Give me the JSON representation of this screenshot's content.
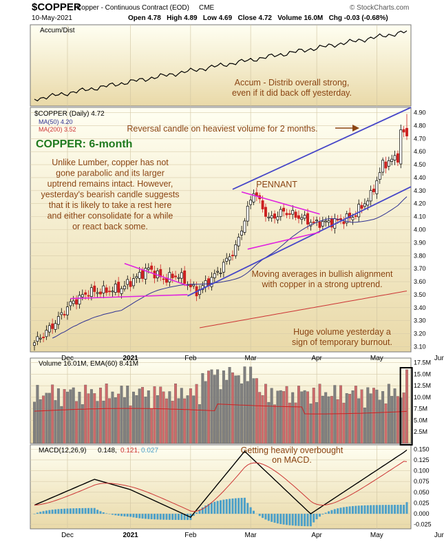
{
  "header": {
    "symbol": "$COPPER",
    "description": "Copper - Continuous Contract (EOD)",
    "exchange": "CME",
    "date": "10-May-2021",
    "site": "© StockCharts.com",
    "ohlc": "Open 4.78   High 4.89   Low 4.69   Close 4.72   Volume 16.0M   Chg -0.03 (-0.68%)"
  },
  "colors": {
    "panel_top": "#fffff2",
    "panel_bottom": "#e9d9a8",
    "up_candle": "#000000",
    "down_candle": "#cc2020",
    "ma50": "#2e3192",
    "ma200": "#cc3333",
    "trendline": "#4646c8",
    "pennant": "#e020e0",
    "annotation": "#8b4513",
    "title_green": "#1f7a1f",
    "macd_hist": "#4da0c8",
    "volume_up": "#808080",
    "volume_down": "#cd6b6b"
  },
  "chart_data": {
    "type": "candlestick",
    "x_labels": [
      "Dec",
      "2021",
      "Feb",
      "Mar",
      "Apr",
      "May",
      "Jun"
    ],
    "accum_panel": {
      "label": "Accum/Dist",
      "annotation": [
        "Accum - Distrib overall strong,",
        "even if it did back off yesterday."
      ]
    },
    "price_panel": {
      "legend": [
        "$COPPER (Daily) 4.72",
        "MA(50) 4.20",
        "MA(200) 3.52"
      ],
      "y_ticks": [
        "3.10",
        "3.20",
        "3.30",
        "3.40",
        "3.50",
        "3.60",
        "3.70",
        "3.80",
        "3.90",
        "4.00",
        "4.10",
        "4.20",
        "4.30",
        "4.40",
        "4.50",
        "4.60",
        "4.70",
        "4.80",
        "4.90"
      ],
      "ylim": [
        3.06,
        4.94
      ],
      "title": "COPPER: 6-month",
      "commentary": [
        "Unlike Lumber, copper has not",
        "gone parabolic and its larger",
        "uptrend remains intact. However,",
        "yesterday's bearish candle suggests",
        "that it is likely to take a rest here",
        "and either consolidate for a while",
        "or react back some."
      ],
      "annotations": {
        "reversal": "Reversal candle on heaviest volume for 2 months.",
        "pennant": "PENNANT",
        "moving_averages": [
          "Moving averages in bullish alignment",
          "with copper in a strong uptrend."
        ],
        "volume": [
          "Huge volume yesterday a",
          "sign of temporary burnout."
        ]
      },
      "close_series": [
        {
          "x": "2020-11-12",
          "close": 3.13
        },
        {
          "x": "2020-11-20",
          "close": 3.26
        },
        {
          "x": "2020-11-30",
          "close": 3.43
        },
        {
          "x": "2020-12-08",
          "close": 3.52
        },
        {
          "x": "2020-12-16",
          "close": 3.53
        },
        {
          "x": "2020-12-24",
          "close": 3.55
        },
        {
          "x": "2021-01-06",
          "close": 3.7
        },
        {
          "x": "2021-01-13",
          "close": 3.62
        },
        {
          "x": "2021-01-21",
          "close": 3.65
        },
        {
          "x": "2021-01-29",
          "close": 3.52
        },
        {
          "x": "2021-02-08",
          "close": 3.67
        },
        {
          "x": "2021-02-16",
          "close": 3.86
        },
        {
          "x": "2021-02-25",
          "close": 4.3
        },
        {
          "x": "2021-03-04",
          "close": 4.08
        },
        {
          "x": "2021-03-12",
          "close": 4.14
        },
        {
          "x": "2021-03-19",
          "close": 4.1
        },
        {
          "x": "2021-03-26",
          "close": 4.05
        },
        {
          "x": "2021-04-06",
          "close": 4.06
        },
        {
          "x": "2021-04-14",
          "close": 4.1
        },
        {
          "x": "2021-04-22",
          "close": 4.26
        },
        {
          "x": "2021-04-29",
          "close": 4.5
        },
        {
          "x": "2021-05-05",
          "close": 4.56
        },
        {
          "x": "2021-05-07",
          "close": 4.75
        },
        {
          "x": "2021-05-10",
          "close": 4.72
        }
      ]
    },
    "volume_panel": {
      "legend": "Volume 16.01M, EMA(60) 8.41M",
      "y_ticks": [
        "2.5M",
        "5.0M",
        "7.5M",
        "10.0M",
        "12.5M",
        "15.0M",
        "17.5M"
      ],
      "ylim": [
        0,
        18.5
      ]
    },
    "macd_panel": {
      "legend_prefix": "MACD(12,26,9)",
      "legend_values": [
        "0.148,",
        "0.121,",
        "0.027"
      ],
      "annotation": [
        "Getting heavily overbought",
        "on MACD."
      ],
      "y_ticks": [
        "-0.025",
        "0.000",
        "0.025",
        "0.050",
        "0.075",
        "0.100",
        "0.125",
        "0.150"
      ],
      "ylim": [
        -0.035,
        0.16
      ]
    }
  }
}
